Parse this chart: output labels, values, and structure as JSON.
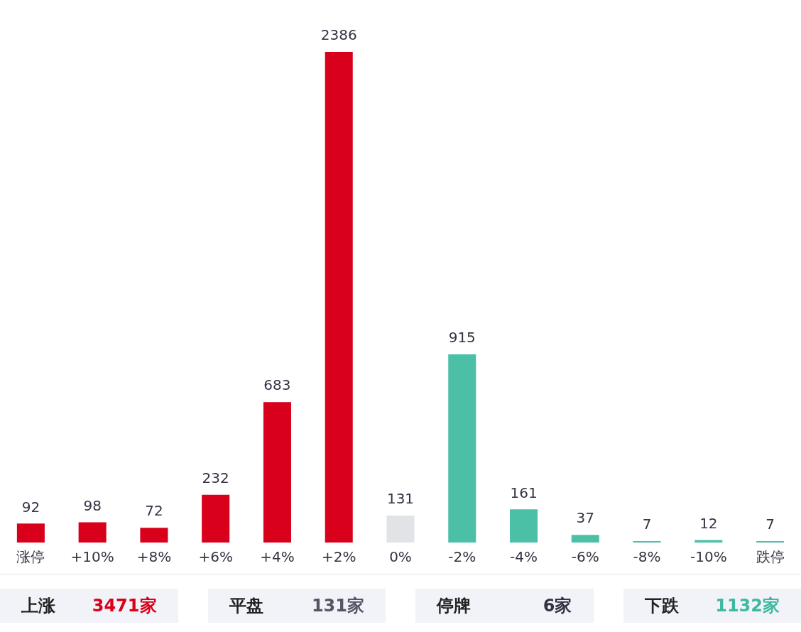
{
  "chart_data": {
    "type": "bar",
    "categories": [
      "涨停",
      "+10%",
      "+8%",
      "+6%",
      "+4%",
      "+2%",
      "0%",
      "-2%",
      "-4%",
      "-6%",
      "-8%",
      "-10%",
      "跌停"
    ],
    "values": [
      92,
      98,
      72,
      232,
      683,
      2386,
      131,
      915,
      161,
      37,
      7,
      12,
      7
    ],
    "colors": [
      "#d9001b",
      "#d9001b",
      "#d9001b",
      "#d9001b",
      "#d9001b",
      "#d9001b",
      "#e2e3e6",
      "#4bc0a6",
      "#4bc0a6",
      "#4bc0a6",
      "#4bc0a6",
      "#4bc0a6",
      "#4bc0a6"
    ],
    "data_labels": true,
    "grid": false,
    "legend": false,
    "annotations": [
      "上涨",
      "3471家",
      "平盘",
      "131家",
      "停牌",
      "6家",
      "下跌",
      "1132家"
    ]
  }
}
